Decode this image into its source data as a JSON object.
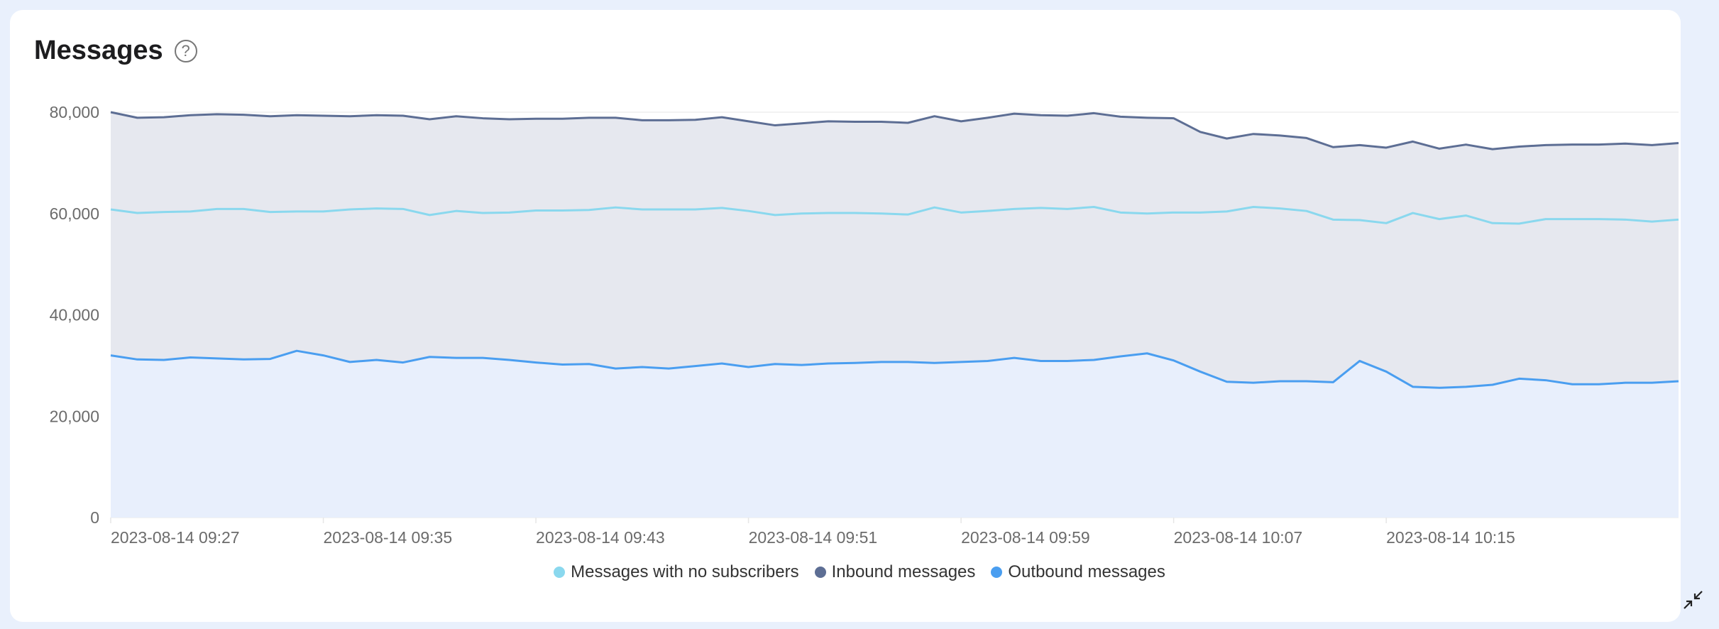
{
  "card": {
    "title": "Messages",
    "help_icon": "question-circle-icon",
    "collapse_icon": "collapse-arrows-icon"
  },
  "legend": [
    {
      "label": "Messages with no subscribers",
      "color": "#8ad8ee"
    },
    {
      "label": "Inbound messages",
      "color": "#5d6e94"
    },
    {
      "label": "Outbound messages",
      "color": "#4a9ef0"
    }
  ],
  "chart_data": {
    "type": "area",
    "title": "Messages",
    "xlabel": "",
    "ylabel": "",
    "ylim": [
      0,
      80000
    ],
    "yticks": [
      "0",
      "20,000",
      "40,000",
      "60,000",
      "80,000"
    ],
    "xticks": [
      "2023-08-14 09:27",
      "2023-08-14 09:35",
      "2023-08-14 09:43",
      "2023-08-14 09:51",
      "2023-08-14 09:59",
      "2023-08-14 10:07",
      "2023-08-14 10:15"
    ],
    "x_start": "2023-08-14 09:27",
    "x_interval_minutes": 1,
    "grid": true,
    "legend_position": "bottom",
    "series": [
      {
        "name": "Inbound messages",
        "color": "#5d6e94",
        "fill": "#e6e8ef",
        "values": [
          80000,
          78900,
          79000,
          79400,
          79600,
          79500,
          79200,
          79400,
          79300,
          79200,
          79400,
          79300,
          78600,
          79200,
          78800,
          78600,
          78700,
          78700,
          78900,
          78900,
          78400,
          78400,
          78500,
          79000,
          78200,
          77400,
          77800,
          78200,
          78100,
          78100,
          77900,
          79200,
          78200,
          78900,
          79700,
          79400,
          79300,
          79800,
          79100,
          78900,
          78800,
          76100,
          74800,
          75700,
          75400,
          74900,
          73100,
          73500,
          73000,
          74200,
          72800,
          73600,
          72700,
          73200,
          73500,
          73600,
          73600,
          73800,
          73500,
          73900
        ]
      },
      {
        "name": "Messages with no subscribers",
        "color": "#8ad8ee",
        "fill": "none",
        "values": [
          60800,
          60100,
          60300,
          60400,
          60900,
          60900,
          60300,
          60400,
          60400,
          60800,
          61000,
          60900,
          59700,
          60500,
          60100,
          60200,
          60600,
          60600,
          60700,
          61200,
          60800,
          60800,
          60800,
          61100,
          60500,
          59700,
          60000,
          60100,
          60100,
          60000,
          59800,
          61200,
          60200,
          60500,
          60900,
          61100,
          60900,
          61300,
          60200,
          60000,
          60200,
          60200,
          60400,
          61300,
          61000,
          60500,
          58800,
          58700,
          58100,
          60100,
          58900,
          59600,
          58100,
          58000,
          58900,
          58900,
          58900,
          58800,
          58400,
          58800
        ]
      },
      {
        "name": "Outbound messages",
        "color": "#4a9ef0",
        "fill": "#e8effc",
        "values": [
          32000,
          31200,
          31100,
          31600,
          31400,
          31200,
          31300,
          32900,
          32000,
          30700,
          31100,
          30600,
          31700,
          31500,
          31500,
          31100,
          30600,
          30200,
          30300,
          29400,
          29700,
          29400,
          29900,
          30400,
          29700,
          30300,
          30100,
          30400,
          30500,
          30700,
          30700,
          30500,
          30700,
          30900,
          31500,
          30900,
          30900,
          31100,
          31800,
          32400,
          31000,
          28800,
          26800,
          26600,
          26900,
          26900,
          26700,
          30900,
          28800,
          25800,
          25600,
          25800,
          26200,
          27400,
          27100,
          26300,
          26300,
          26600,
          26600,
          26900
        ]
      }
    ]
  }
}
